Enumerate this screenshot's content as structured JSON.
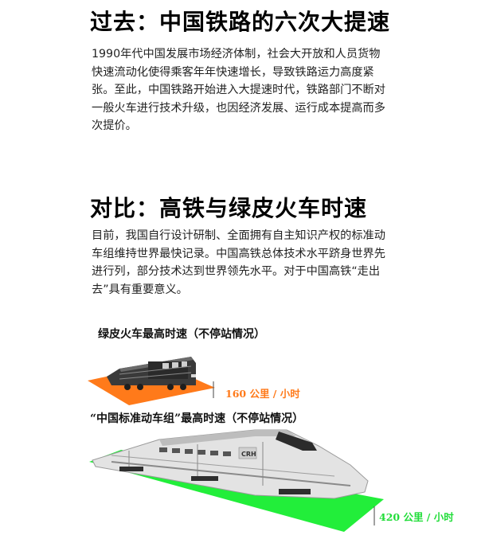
{
  "section1": {
    "title": "过去：中国铁路的六次大提速",
    "body": "1990年代中国发展市场经济体制，社会大开放和人员货物快速流动化使得乘客年年快速增长，导致铁路运力高度紧张。至此，中国铁路开始进入大提速时代，铁路部门不断对一般火车进行技术升级，也因经济发展、运行成本提高而多次提价。"
  },
  "section2": {
    "title": "对比：高铁与绿皮火车时速",
    "body": "目前，我国自行设计研制、全面拥有自主知识产权的标准动车组维持世界最快记录。中国高铁总体技术水平跻身世界先进行列，部分技术达到世界领先水平。对于中国高铁“走出去”具有重要意义。"
  },
  "green_train": {
    "caption": "绿皮火车最高时速（不停站情况）",
    "speed": "160 公里 / 小时",
    "color": "#ff7a1a"
  },
  "emu_train": {
    "caption": "“中国标准动车组”最高时速（不停站情况）",
    "speed": "420 公里 / 小时",
    "color": "#22ee3a",
    "logo": "CRH",
    "icon": "high-speed-train-icon"
  },
  "colors": {
    "orange": "#ff7a1a",
    "green": "#22ee3a",
    "text": "#222222"
  }
}
